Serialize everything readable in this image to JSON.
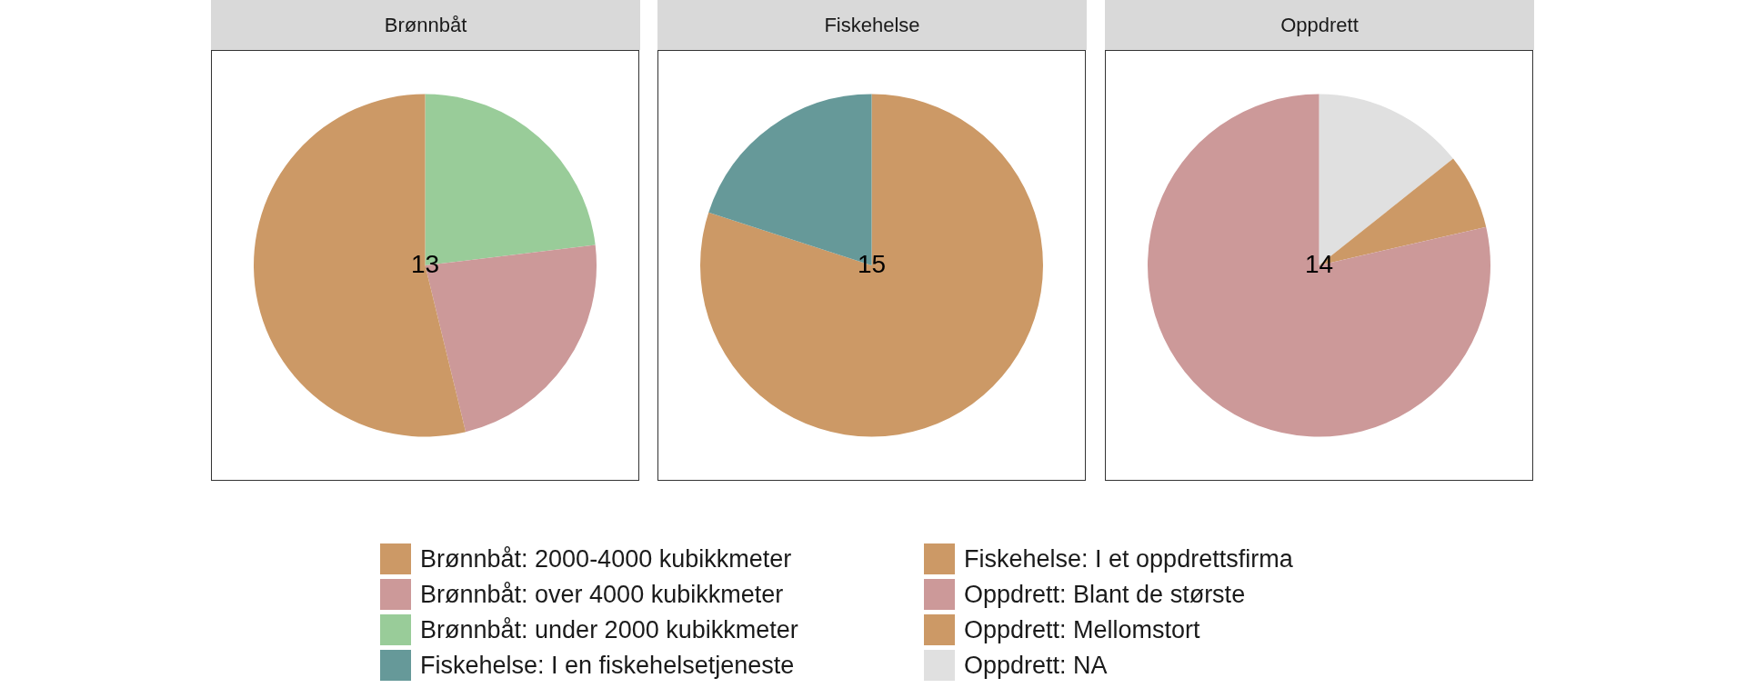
{
  "chart_data": [
    {
      "type": "pie",
      "title": "Brønnbåt",
      "categories": [
        "Brønnbåt: under 2000 kubikkmeter",
        "Brønnbåt: over 4000 kubikkmeter",
        "Brønnbåt: 2000-4000 kubikkmeter"
      ],
      "values": [
        23.1,
        23.1,
        53.8
      ],
      "colors": [
        "#99cc99",
        "#cc9999",
        "#cc9966"
      ],
      "annotations": [
        "13"
      ],
      "legend": "bottom"
    },
    {
      "type": "pie",
      "title": "Fiskehelse",
      "categories": [
        "Fiskehelse: I et oppdrettsfirma",
        "Fiskehelse: I en fiskehelsetjeneste"
      ],
      "values": [
        80,
        20
      ],
      "colors": [
        "#cc9966",
        "#669999"
      ],
      "annotations": [
        "15"
      ],
      "legend": "bottom"
    },
    {
      "type": "pie",
      "title": "Oppdrett",
      "categories": [
        "Oppdrett: NA",
        "Oppdrett: Mellomstort",
        "Oppdrett: Blant de største"
      ],
      "values": [
        14.3,
        7.1,
        78.6
      ],
      "colors": [
        "#e0e0e0",
        "#cc9966",
        "#cc9999"
      ],
      "annotations": [
        "14"
      ],
      "legend": "bottom"
    }
  ]
}
